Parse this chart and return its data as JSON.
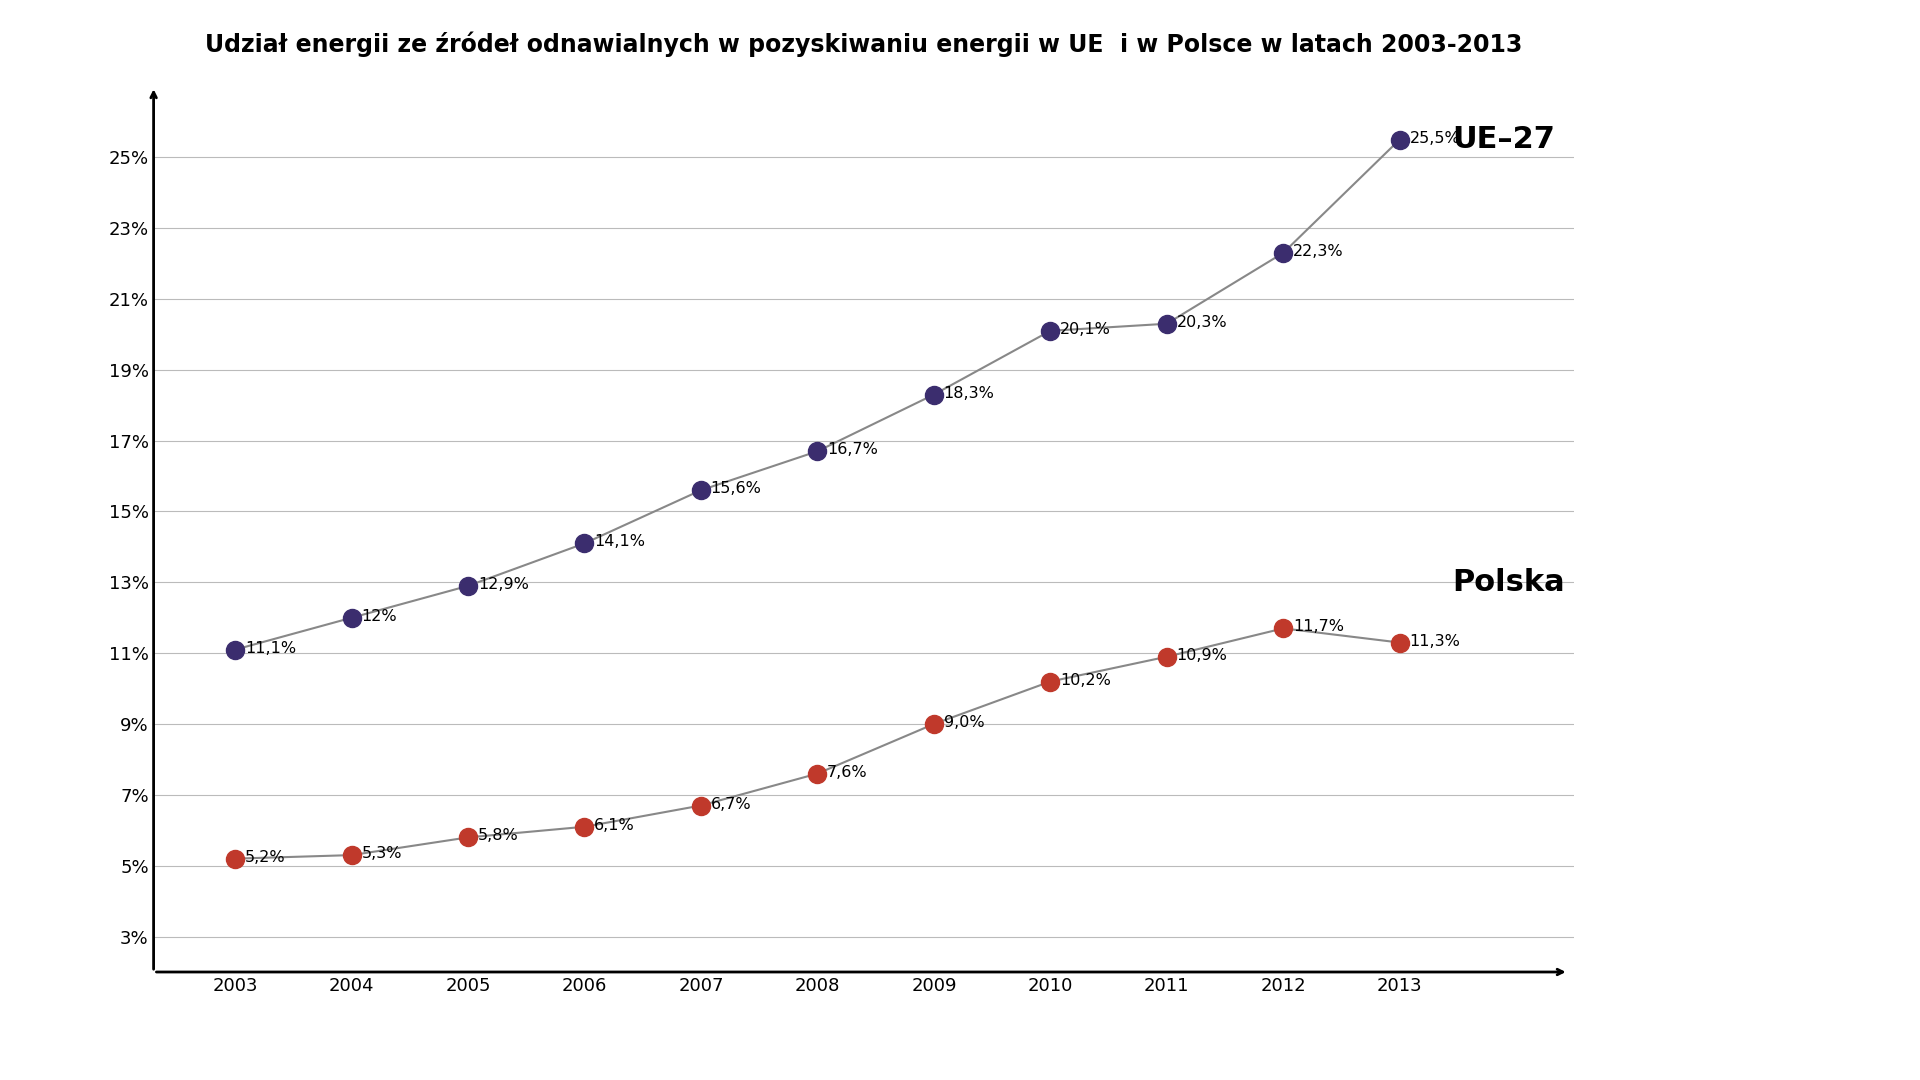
{
  "title": "Udział energii ze źródeł odnawialnych w pozyskiwaniu energii w UE  i w Polsce w latach 2003-2013",
  "years": [
    2003,
    2004,
    2005,
    2006,
    2007,
    2008,
    2009,
    2010,
    2011,
    2012,
    2013
  ],
  "ue_values": [
    11.1,
    12.0,
    12.9,
    14.1,
    15.6,
    16.7,
    18.3,
    20.1,
    20.3,
    22.3,
    25.5
  ],
  "pl_values": [
    5.2,
    5.3,
    5.8,
    6.1,
    6.7,
    7.6,
    9.0,
    10.2,
    10.9,
    11.7,
    11.3
  ],
  "ue_labels": [
    "11,1%",
    "12%",
    "12,9%",
    "14,1%",
    "15,6%",
    "16,7%",
    "18,3%",
    "20,1%",
    "20,3%",
    "22,3%",
    "25,5%"
  ],
  "pl_labels": [
    "5,2%",
    "5,3%",
    "5,8%",
    "6,1%",
    "6,7%",
    "7,6%",
    "9,0%",
    "10,2%",
    "10,9%",
    "11,7%",
    "11,3%"
  ],
  "ue_color": "#3b2d6e",
  "pl_color": "#c0392b",
  "line_color": "#888888",
  "yticks": [
    3,
    5,
    7,
    9,
    11,
    13,
    15,
    17,
    19,
    21,
    23,
    25
  ],
  "ytick_labels": [
    "3%",
    "5%",
    "7%",
    "9%",
    "11%",
    "13%",
    "15%",
    "17%",
    "19%",
    "21%",
    "23%",
    "25%"
  ],
  "legend_ue": "UE–27",
  "legend_pl": "Polska",
  "background_color": "#ffffff",
  "title_fontsize": 17,
  "label_fontsize": 11.5,
  "tick_fontsize": 13,
  "legend_fontsize": 22,
  "marker_size": 13,
  "xlim_left": 2002.3,
  "xlim_right": 2014.5,
  "ylim_bottom": 2.0,
  "ylim_top": 27.0
}
